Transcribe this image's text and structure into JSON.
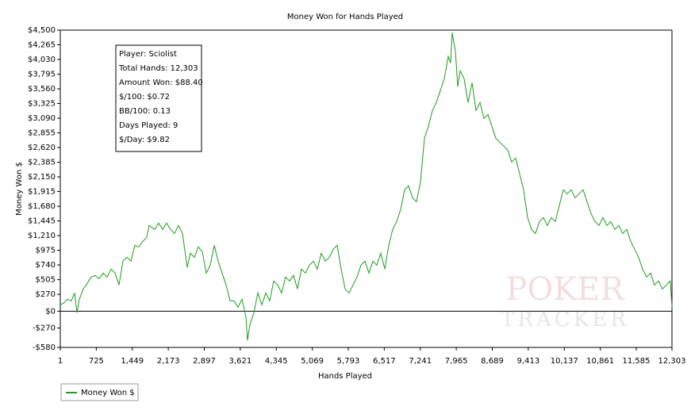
{
  "chart_data": {
    "type": "line",
    "title": "Money Won for Hands Played",
    "x_label": "Hands Played",
    "y_label": "Money Won $",
    "annotations": [
      "Player: Sciolist",
      "Total Hands: 12,303",
      "Amount Won: $88.40",
      "$/100: $0.72",
      "BB/100: 0.13",
      "Days Played: 9",
      "$/Day: $9.82"
    ],
    "watermark": [
      "POKER",
      "TRACKER"
    ],
    "legend": "bottom-left",
    "xlim": [
      1,
      12303
    ],
    "ylim": [
      -580,
      4500
    ],
    "xticks": [
      1,
      725,
      {
        "value": 1449,
        "label": "1,449"
      },
      {
        "value": 2173,
        "label": "2,173"
      },
      {
        "value": 2897,
        "label": "2,897"
      },
      {
        "value": 3621,
        "label": "3,621"
      },
      {
        "value": 4345,
        "label": "4,345"
      },
      {
        "value": 5069,
        "label": "5,069"
      },
      {
        "value": 5793,
        "label": "5,793"
      },
      {
        "value": 6517,
        "label": "6,517"
      },
      {
        "value": 7241,
        "label": "7,241"
      },
      {
        "value": 7965,
        "label": "7,965"
      },
      {
        "value": 8689,
        "label": "8,689"
      },
      {
        "value": 9413,
        "label": "9,413"
      },
      {
        "value": 10137,
        "label": "10,137"
      },
      {
        "value": 10861,
        "label": "10,861"
      },
      {
        "value": 11585,
        "label": "11,585"
      },
      {
        "value": 12303,
        "label": "12,303"
      }
    ],
    "yticks": [
      {
        "value": -580,
        "label": "-$580"
      },
      {
        "value": -270,
        "label": "-$270"
      },
      {
        "value": 0,
        "label": "$0"
      },
      {
        "value": 270,
        "label": "$270"
      },
      {
        "value": 505,
        "label": "$505"
      },
      {
        "value": 740,
        "label": "$740"
      },
      {
        "value": 975,
        "label": "$975"
      },
      {
        "value": 1210,
        "label": "$1,210"
      },
      {
        "value": 1445,
        "label": "$1,445"
      },
      {
        "value": 1680,
        "label": "$1,680"
      },
      {
        "value": 1915,
        "label": "$1,915"
      },
      {
        "value": 2150,
        "label": "$2,150"
      },
      {
        "value": 2385,
        "label": "$2,385"
      },
      {
        "value": 2620,
        "label": "$2,620"
      },
      {
        "value": 2855,
        "label": "$2,855"
      },
      {
        "value": 3090,
        "label": "$3,090"
      },
      {
        "value": 3325,
        "label": "$3,325"
      },
      {
        "value": 3560,
        "label": "$3,560"
      },
      {
        "value": 3795,
        "label": "$3,795"
      },
      {
        "value": 4030,
        "label": "$4,030"
      },
      {
        "value": 4265,
        "label": "$4,265"
      },
      {
        "value": 4500,
        "label": "$4,500"
      }
    ],
    "x": [
      1,
      65,
      145,
      224,
      288,
      336,
      384,
      464,
      543,
      623,
      703,
      783,
      863,
      942,
      1022,
      1102,
      1182,
      1261,
      1341,
      1421,
      1501,
      1581,
      1660,
      1740,
      1788,
      1900,
      1980,
      2059,
      2139,
      2219,
      2299,
      2378,
      2458,
      2554,
      2618,
      2698,
      2777,
      2857,
      2937,
      3017,
      3097,
      3176,
      3256,
      3336,
      3416,
      3495,
      3575,
      3655,
      3735,
      3767,
      3815,
      3894,
      3974,
      4054,
      4134,
      4213,
      4293,
      4373,
      4453,
      4533,
      4612,
      4692,
      4772,
      4852,
      4931,
      5011,
      5091,
      5171,
      5251,
      5330,
      5410,
      5490,
      5570,
      5649,
      5729,
      5809,
      5889,
      5969,
      6048,
      6128,
      6208,
      6288,
      6367,
      6447,
      6527,
      6607,
      6687,
      6766,
      6846,
      6926,
      7006,
      7085,
      7165,
      7245,
      7325,
      7405,
      7484,
      7564,
      7644,
      7724,
      7803,
      7851,
      7883,
      7947,
      7995,
      8043,
      8123,
      8202,
      8282,
      8362,
      8442,
      8522,
      8601,
      8681,
      8761,
      8841,
      8920,
      9000,
      9080,
      9160,
      9239,
      9319,
      9399,
      9479,
      9559,
      9638,
      9718,
      9798,
      9878,
      9957,
      10037,
      10117,
      10197,
      10277,
      10356,
      10436,
      10516,
      10596,
      10675,
      10755,
      10835,
      10915,
      10994,
      11074,
      11154,
      11234,
      11313,
      11393,
      11473,
      11553,
      11632,
      11712,
      11792,
      11872,
      11951,
      12031,
      12111,
      12191,
      12270,
      12303
    ],
    "series": [
      {
        "name": "Money Won $",
        "color": "#1f9a1f",
        "values": [
          102,
          127,
          191,
          165,
          292,
          -25,
          191,
          356,
          445,
          546,
          572,
          521,
          610,
          546,
          673,
          610,
          419,
          800,
          864,
          800,
          1054,
          1029,
          1118,
          1181,
          1372,
          1308,
          1410,
          1308,
          1410,
          1308,
          1245,
          1372,
          1245,
          699,
          927,
          864,
          1029,
          953,
          610,
          737,
          1054,
          800,
          610,
          419,
          165,
          165,
          64,
          191,
          -89,
          -470,
          -216,
          -25,
          292,
          102,
          292,
          165,
          483,
          419,
          292,
          546,
          483,
          572,
          356,
          673,
          610,
          737,
          800,
          673,
          927,
          800,
          864,
          991,
          1054,
          673,
          356,
          292,
          419,
          546,
          737,
          800,
          610,
          800,
          737,
          927,
          673,
          1054,
          1308,
          1435,
          1626,
          1943,
          2007,
          1816,
          1753,
          2070,
          2769,
          2959,
          3213,
          3340,
          3531,
          3721,
          4077,
          3975,
          4458,
          4166,
          3594,
          3848,
          3721,
          3340,
          3658,
          3213,
          3340,
          3086,
          3150,
          2959,
          2769,
          2705,
          2642,
          2578,
          2388,
          2451,
          2197,
          1943,
          1499,
          1308,
          1245,
          1435,
          1499,
          1372,
          1499,
          1435,
          1689,
          1943,
          1880,
          1943,
          1816,
          1880,
          1943,
          1753,
          1562,
          1435,
          1372,
          1499,
          1372,
          1435,
          1308,
          1372,
          1245,
          1308,
          1118,
          991,
          864,
          673,
          546,
          610,
          419,
          483,
          356,
          419,
          483,
          64
        ]
      }
    ]
  }
}
